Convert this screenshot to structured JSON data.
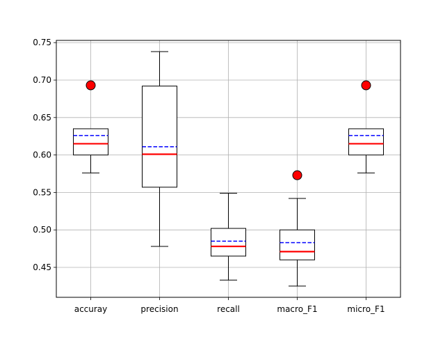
{
  "chart_data": {
    "type": "boxplot",
    "categories": [
      "accuray",
      "precision",
      "recall",
      "macro_F1",
      "micro_F1"
    ],
    "ylim": [
      0.41,
      0.753
    ],
    "yticks": [
      "0.45",
      "0.50",
      "0.55",
      "0.60",
      "0.65",
      "0.70",
      "0.75"
    ],
    "grid": true,
    "boxes": [
      {
        "whisker_low": 0.576,
        "q1": 0.6,
        "median": 0.615,
        "mean": 0.626,
        "q3": 0.635,
        "whisker_high": 0.635,
        "outliers": [
          0.693
        ]
      },
      {
        "whisker_low": 0.478,
        "q1": 0.557,
        "median": 0.601,
        "mean": 0.611,
        "q3": 0.692,
        "whisker_high": 0.738,
        "outliers": []
      },
      {
        "whisker_low": 0.433,
        "q1": 0.465,
        "median": 0.478,
        "mean": 0.485,
        "q3": 0.502,
        "whisker_high": 0.549,
        "outliers": []
      },
      {
        "whisker_low": 0.425,
        "q1": 0.46,
        "median": 0.471,
        "mean": 0.483,
        "q3": 0.5,
        "whisker_high": 0.542,
        "outliers": [
          0.573
        ]
      },
      {
        "whisker_low": 0.576,
        "q1": 0.6,
        "median": 0.615,
        "mean": 0.626,
        "q3": 0.635,
        "whisker_high": 0.635,
        "outliers": [
          0.693
        ]
      }
    ],
    "colors": {
      "median": "#ff0000",
      "mean": "#0000ff",
      "outlier": "#ff0000",
      "box": "#000000",
      "grid": "#b0b0b0"
    }
  }
}
